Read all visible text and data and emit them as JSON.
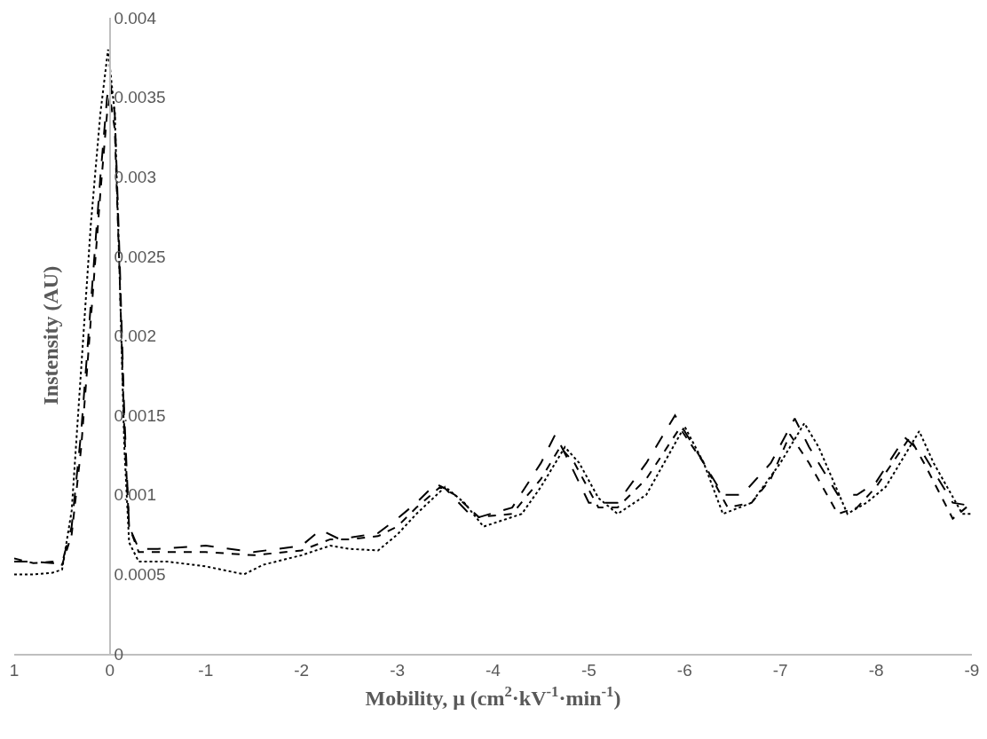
{
  "chart_data": {
    "type": "line",
    "xlabel": "Mobility, μ (cm$^{2}$·kV$^{-1}$·min$^{-1}$)",
    "ylabel": "Instensity (AU)",
    "xlim": [
      1,
      -9
    ],
    "xticks": [
      1,
      0,
      -1,
      -2,
      -3,
      -4,
      -5,
      -6,
      -7,
      -8,
      -9
    ],
    "ylim": [
      0,
      0.004
    ],
    "yticks": [
      0,
      0.0005,
      0.001,
      0.0015,
      0.002,
      0.0025,
      0.003,
      0.0035,
      0.004
    ],
    "marker": "none",
    "series": [
      {
        "color": "#000000",
        "line_style": "longdash",
        "x": [
          1,
          0.8,
          0.6,
          0.5,
          0.4,
          0.3,
          0.2,
          0.1,
          0.03,
          0,
          -0.05,
          -0.1,
          -0.15,
          -0.2,
          -0.3,
          -0.5,
          -1,
          -1.5,
          -2,
          -2.2,
          -2.4,
          -2.8,
          -3,
          -3.2,
          -3.4,
          -3.5,
          -3.8,
          -4.2,
          -4.5,
          -4.65,
          -4.8,
          -5,
          -5.3,
          -5.6,
          -5.9,
          -6.1,
          -6.4,
          -6.6,
          -6.9,
          -7.15,
          -7.3,
          -7.6,
          -7.8,
          -8,
          -8.3,
          -8.5,
          -8.8,
          -9
        ],
        "values": [
          0.00058,
          0.00058,
          0.00057,
          0.00057,
          0.0008,
          0.0014,
          0.0022,
          0.003,
          0.0035,
          0.0036,
          0.0034,
          0.0025,
          0.0015,
          0.0008,
          0.00066,
          0.00066,
          0.00068,
          0.00064,
          0.00068,
          0.00078,
          0.00072,
          0.00076,
          0.00085,
          0.00095,
          0.00107,
          0.00104,
          0.00085,
          0.00092,
          0.0012,
          0.00138,
          0.0012,
          0.00095,
          0.00095,
          0.0012,
          0.0015,
          0.0013,
          0.001,
          0.001,
          0.0012,
          0.00148,
          0.0013,
          0.001,
          0.001,
          0.00108,
          0.00136,
          0.00125,
          0.00095,
          0.00093
        ]
      },
      {
        "color": "#000000",
        "line_style": "dashed",
        "x": [
          1,
          0.8,
          0.6,
          0.5,
          0.4,
          0.3,
          0.2,
          0.1,
          0.03,
          0,
          -0.05,
          -0.1,
          -0.15,
          -0.2,
          -0.3,
          -0.5,
          -1,
          -1.5,
          -2,
          -2.3,
          -2.5,
          -2.8,
          -3,
          -3.2,
          -3.45,
          -3.6,
          -3.85,
          -4.2,
          -4.5,
          -4.7,
          -4.85,
          -5.1,
          -5.3,
          -5.6,
          -5.95,
          -6.2,
          -6.45,
          -6.7,
          -6.9,
          -7.1,
          -7.3,
          -7.6,
          -7.8,
          -8,
          -8.35,
          -8.5,
          -8.8,
          -9
        ],
        "values": [
          0.0006,
          0.00057,
          0.00058,
          0.00056,
          0.00075,
          0.0013,
          0.0021,
          0.0029,
          0.0034,
          0.0035,
          0.0033,
          0.0024,
          0.0014,
          0.0008,
          0.00064,
          0.00064,
          0.00064,
          0.00062,
          0.00065,
          0.00072,
          0.00072,
          0.00074,
          0.0008,
          0.00092,
          0.00105,
          0.001,
          0.00086,
          0.00088,
          0.0011,
          0.0013,
          0.0012,
          0.00092,
          0.00092,
          0.0011,
          0.00142,
          0.0012,
          0.00092,
          0.00095,
          0.0011,
          0.00138,
          0.0012,
          0.00088,
          0.00092,
          0.00105,
          0.00136,
          0.0012,
          0.00085,
          0.00095
        ]
      },
      {
        "color": "#000000",
        "line_style": "dotted",
        "x": [
          1,
          0.8,
          0.6,
          0.5,
          0.4,
          0.3,
          0.2,
          0.1,
          0.02,
          -0.05,
          -0.1,
          -0.15,
          -0.2,
          -0.3,
          -0.6,
          -1,
          -1.4,
          -1.6,
          -2,
          -2.3,
          -2.5,
          -2.8,
          -3,
          -3.2,
          -3.5,
          -3.7,
          -3.9,
          -4.3,
          -4.5,
          -4.75,
          -4.9,
          -5.1,
          -5.3,
          -5.6,
          -6.0,
          -6.2,
          -6.4,
          -6.7,
          -7.0,
          -7.25,
          -7.4,
          -7.7,
          -7.9,
          -8.1,
          -8.45,
          -8.6,
          -8.9,
          -9
        ],
        "values": [
          0.0005,
          0.0005,
          0.00051,
          0.00053,
          0.0009,
          0.0018,
          0.0027,
          0.0034,
          0.0038,
          0.0034,
          0.0024,
          0.0013,
          0.0007,
          0.00058,
          0.00058,
          0.00055,
          0.0005,
          0.00056,
          0.00062,
          0.00068,
          0.00066,
          0.00065,
          0.00075,
          0.00088,
          0.00105,
          0.00095,
          0.0008,
          0.00088,
          0.00105,
          0.0013,
          0.0012,
          0.00098,
          0.00088,
          0.001,
          0.00143,
          0.0012,
          0.00088,
          0.00095,
          0.0012,
          0.00145,
          0.0013,
          0.00088,
          0.00095,
          0.00105,
          0.0014,
          0.0012,
          0.00088,
          0.00088
        ]
      }
    ]
  }
}
